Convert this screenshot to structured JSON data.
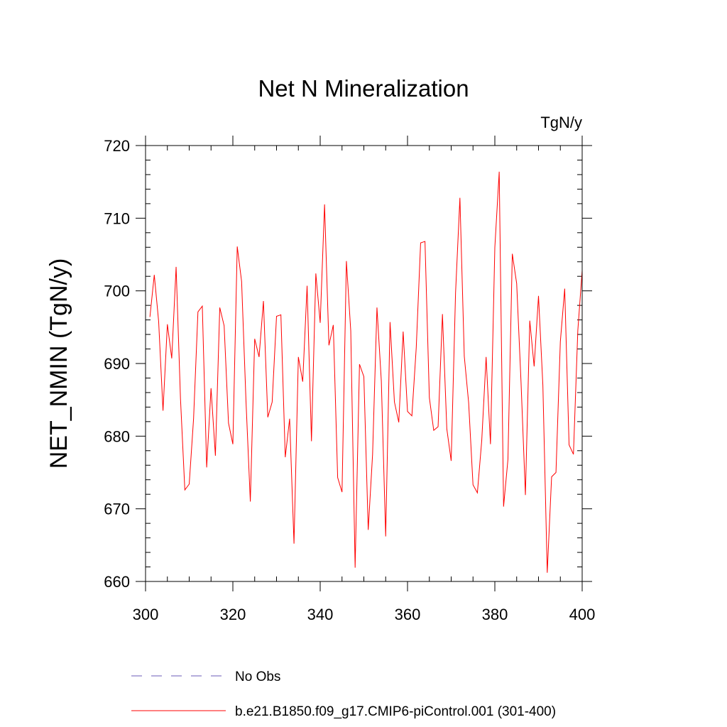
{
  "chart_data": {
    "type": "line",
    "title": "Net N Mineralization",
    "units_label": "TgN/y",
    "ylabel": "NET_NMIN  (TgN/y)",
    "xlabel": "",
    "xlim": [
      300,
      400
    ],
    "ylim": [
      660,
      720
    ],
    "xticks": [
      300,
      320,
      340,
      360,
      380,
      400
    ],
    "yticks": [
      660,
      670,
      680,
      690,
      700,
      710,
      720
    ],
    "series": [
      {
        "name": "b.e21.B1850.f09_g17.CMIP6-piControl.001 (301-400)",
        "color": "#ff0000",
        "style": "solid",
        "x": [
          301,
          302,
          303,
          304,
          305,
          306,
          307,
          308,
          309,
          310,
          311,
          312,
          313,
          314,
          315,
          316,
          317,
          318,
          319,
          320,
          321,
          322,
          323,
          324,
          325,
          326,
          327,
          328,
          329,
          330,
          331,
          332,
          333,
          334,
          335,
          336,
          337,
          338,
          339,
          340,
          341,
          342,
          343,
          344,
          345,
          346,
          347,
          348,
          349,
          350,
          351,
          352,
          353,
          354,
          355,
          356,
          357,
          358,
          359,
          360,
          361,
          362,
          363,
          364,
          365,
          366,
          367,
          368,
          369,
          370,
          371,
          372,
          373,
          374,
          375,
          376,
          377,
          378,
          379,
          380,
          381,
          382,
          383,
          384,
          385,
          386,
          387,
          388,
          389,
          390,
          391,
          392,
          393,
          394,
          395,
          396,
          397,
          398,
          399,
          400
        ],
        "y": [
          696.4,
          702.2,
          695.8,
          683.5,
          695.4,
          690.7,
          703.3,
          685.2,
          672.6,
          673.4,
          682.4,
          697.1,
          697.9,
          675.7,
          686.6,
          677.3,
          697.7,
          695.2,
          681.8,
          678.9,
          706.1,
          701.3,
          684.9,
          671.0,
          693.4,
          690.9,
          698.6,
          682.6,
          684.7,
          696.5,
          696.7,
          677.1,
          682.4,
          665.2,
          690.9,
          687.5,
          700.7,
          679.3,
          702.4,
          695.6,
          711.9,
          692.5,
          695.3,
          674.3,
          672.3,
          704.1,
          694.5,
          661.9,
          689.9,
          688.2,
          667.1,
          677.5,
          697.7,
          687.6,
          666.2,
          695.7,
          684.7,
          681.9,
          694.4,
          683.4,
          682.8,
          692.2,
          706.6,
          706.8,
          685.3,
          680.8,
          681.3,
          696.8,
          681.0,
          676.6,
          699.7,
          712.8,
          691.0,
          684.6,
          673.3,
          672.2,
          679.4,
          690.9,
          678.9,
          706.0,
          716.4,
          670.3,
          676.8,
          705.1,
          701.0,
          687.4,
          671.9,
          695.9,
          689.6,
          699.3,
          687.0,
          661.2,
          674.4,
          675.0,
          693.0,
          700.3,
          678.8,
          677.5,
          694.5,
          702.8
        ]
      }
    ],
    "legend": [
      {
        "label": "No Obs",
        "color": "#6b5bb8",
        "style": "dashed"
      },
      {
        "label": "b.e21.B1850.f09_g17.CMIP6-piControl.001 (301-400)",
        "color": "#ff0000",
        "style": "solid"
      }
    ]
  }
}
